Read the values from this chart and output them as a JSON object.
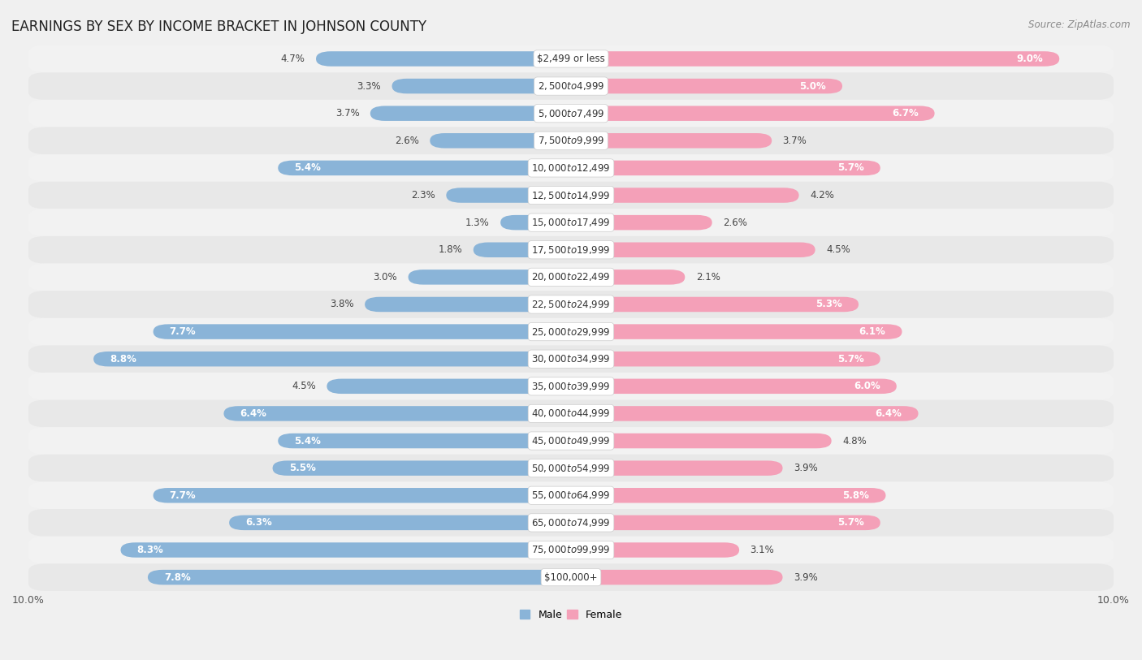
{
  "title": "EARNINGS BY SEX BY INCOME BRACKET IN JOHNSON COUNTY",
  "source": "Source: ZipAtlas.com",
  "categories": [
    "$2,499 or less",
    "$2,500 to $4,999",
    "$5,000 to $7,499",
    "$7,500 to $9,999",
    "$10,000 to $12,499",
    "$12,500 to $14,999",
    "$15,000 to $17,499",
    "$17,500 to $19,999",
    "$20,000 to $22,499",
    "$22,500 to $24,999",
    "$25,000 to $29,999",
    "$30,000 to $34,999",
    "$35,000 to $39,999",
    "$40,000 to $44,999",
    "$45,000 to $49,999",
    "$50,000 to $54,999",
    "$55,000 to $64,999",
    "$65,000 to $74,999",
    "$75,000 to $99,999",
    "$100,000+"
  ],
  "male_values": [
    4.7,
    3.3,
    3.7,
    2.6,
    5.4,
    2.3,
    1.3,
    1.8,
    3.0,
    3.8,
    7.7,
    8.8,
    4.5,
    6.4,
    5.4,
    5.5,
    7.7,
    6.3,
    8.3,
    7.8
  ],
  "female_values": [
    9.0,
    5.0,
    6.7,
    3.7,
    5.7,
    4.2,
    2.6,
    4.5,
    2.1,
    5.3,
    6.1,
    5.7,
    6.0,
    6.4,
    4.8,
    3.9,
    5.8,
    5.7,
    3.1,
    3.9
  ],
  "male_color": "#8ab4d8",
  "female_color": "#f4a0b8",
  "male_label": "Male",
  "female_label": "Female",
  "xlim": 10.0,
  "row_colors": [
    "#f2f2f2",
    "#e8e8e8"
  ],
  "title_fontsize": 12,
  "source_fontsize": 8.5,
  "value_fontsize": 8.5,
  "cat_fontsize": 8.5,
  "axis_fontsize": 9
}
